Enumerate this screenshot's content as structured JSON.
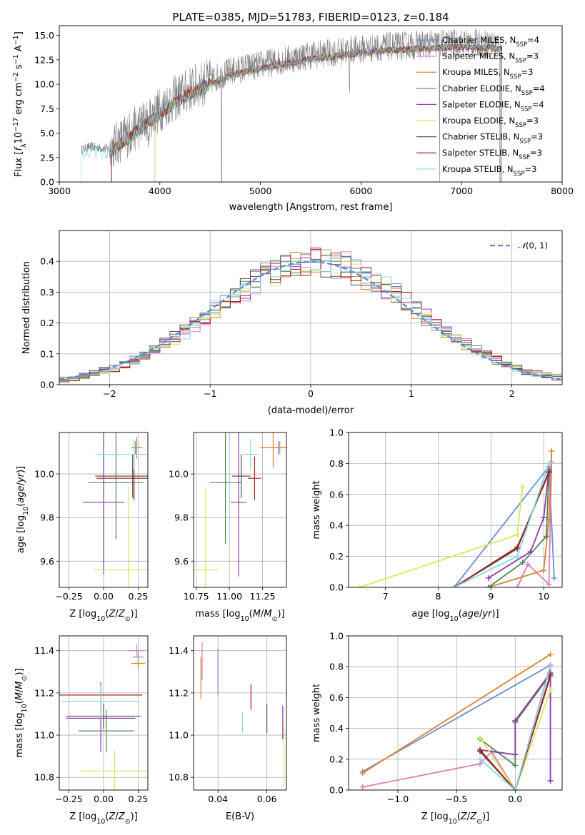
{
  "figure": {
    "title": "PLATE=0385, MJD=51783, FIBERID=0123, z=0.184"
  },
  "colors": {
    "Chabrier MILES": "#6d8fd6",
    "Salpeter MILES": "#e07ab8",
    "Kroupa MILES": "#d9822b",
    "Chabrier ELODIE": "#4f8a5a",
    "Salpeter ELODIE": "#8e3aa8",
    "Kroupa ELODIE": "#d5e85a",
    "Chabrier STELIB": "#555555",
    "Salpeter STELIB": "#a31f1f",
    "Kroupa STELIB": "#86d8e0",
    "data": "#808080",
    "normal_curve": "#5b8ad8"
  },
  "legend_models": [
    {
      "name": "Chabrier MILES",
      "nssp": "4"
    },
    {
      "name": "Salpeter MILES",
      "nssp": "3"
    },
    {
      "name": "Kroupa MILES",
      "nssp": "3"
    },
    {
      "name": "Chabrier ELODIE",
      "nssp": "4"
    },
    {
      "name": "Salpeter ELODIE",
      "nssp": "4"
    },
    {
      "name": "Kroupa ELODIE",
      "nssp": "3"
    },
    {
      "name": "Chabrier STELIB",
      "nssp": "3"
    },
    {
      "name": "Salpeter STELIB",
      "nssp": "3"
    },
    {
      "name": "Kroupa STELIB",
      "nssp": "3"
    }
  ],
  "chart_data": [
    {
      "id": "spectrum",
      "type": "line",
      "xlabel": "wavelength [Angstrom, rest frame]",
      "ylabel": "Flux [f_λ 10^-17 erg cm^-2 s^-1 A^-1]",
      "xlim": [
        3000,
        8000
      ],
      "ylim": [
        0,
        16
      ],
      "xticks": [
        3000,
        4000,
        5000,
        6000,
        7000,
        8000
      ],
      "yticks": [
        0.0,
        2.5,
        5.0,
        7.5,
        10.0,
        12.5,
        15.0
      ],
      "grid": false,
      "legend": "top-right",
      "observed_flux_envelope": {
        "x": [
          3220,
          3300,
          3500,
          3700,
          3900,
          4100,
          4300,
          4500,
          4700,
          4900,
          5100,
          5300,
          5500,
          5700,
          5900,
          6100,
          6300,
          6500,
          6700,
          6900,
          7100,
          7300,
          7400
        ],
        "y": [
          3.3,
          3.6,
          3.4,
          5.0,
          6.6,
          8.2,
          9.5,
          10.4,
          11.3,
          11.8,
          12.2,
          12.6,
          13.0,
          13.2,
          13.5,
          13.7,
          13.9,
          14.0,
          14.1,
          14.2,
          14.2,
          14.1,
          14.0
        ]
      },
      "model_start_wavelengths": {
        "Kroupa STELIB": 3220,
        "Salpeter MILES": 3520,
        "Salpeter STELIB": 3520,
        "Kroupa ELODIE": 3950,
        "Salpeter ELODIE": 3950
      }
    },
    {
      "id": "residuals",
      "type": "bar",
      "xlabel": "(data-model)/error",
      "ylabel": "Normed distribution",
      "xlim": [
        -2.5,
        2.5
      ],
      "ylim": [
        0,
        0.5
      ],
      "xticks": [
        -2,
        -1,
        0,
        1,
        2
      ],
      "yticks": [
        0.0,
        0.1,
        0.2,
        0.3,
        0.4
      ],
      "grid": true,
      "legend": "top-right",
      "legend_entry": "N(0,1)",
      "bin_width": 0.1,
      "normal_curve": {
        "mean": 0,
        "sigma": 1
      }
    },
    {
      "id": "age_vs_Z",
      "type": "scatter",
      "xlabel": "Z [log10(Z/Z⊙)]",
      "ylabel": "age [log10(age/yr)]",
      "xlim": [
        -0.32,
        0.32
      ],
      "ylim": [
        9.48,
        10.19
      ],
      "xticks": [
        -0.25,
        0.0,
        0.25
      ],
      "yticks": [
        9.6,
        9.8,
        10.0
      ],
      "grid": true,
      "points": [
        {
          "model": "Chabrier MILES",
          "x": 0.23,
          "xerr": 0.02,
          "y": 10.12,
          "yerr": 0.03
        },
        {
          "model": "Salpeter MILES",
          "x": 0.24,
          "xerr": 0.02,
          "y": 10.12,
          "yerr": 0.03
        },
        {
          "model": "Kroupa MILES",
          "x": 0.24,
          "xerr": 0.04,
          "y": 10.12,
          "yerr": 0.05
        },
        {
          "model": "Chabrier ELODIE",
          "x": 0.09,
          "xerr": 0.2,
          "y": 9.96,
          "yerr": 0.26
        },
        {
          "model": "Salpeter ELODIE",
          "x": 0.0,
          "xerr": 0.15,
          "y": 9.87,
          "yerr": 0.33
        },
        {
          "model": "Kroupa ELODIE",
          "x": 0.18,
          "xerr": 0.25,
          "y": 9.56,
          "yerr": 0.38
        },
        {
          "model": "Chabrier STELIB",
          "x": 0.21,
          "xerr": 0.27,
          "y": 9.99,
          "yerr": 0.1
        },
        {
          "model": "Salpeter STELIB",
          "x": 0.22,
          "xerr": 0.27,
          "y": 9.98,
          "yerr": 0.1
        },
        {
          "model": "Kroupa STELIB",
          "x": 0.22,
          "xerr": 0.28,
          "y": 10.09,
          "yerr": 0.07
        }
      ]
    },
    {
      "id": "age_vs_mass",
      "type": "scatter",
      "xlabel": "mass [log10(M/M⊙)]",
      "ylabel": "",
      "xlim": [
        10.73,
        11.43
      ],
      "ylim": [
        9.48,
        10.19
      ],
      "xticks": [
        10.75,
        11.0,
        11.25
      ],
      "yticks": [
        9.6,
        9.8,
        10.0
      ],
      "grid": true,
      "points": [
        {
          "model": "Chabrier MILES",
          "x": 11.37,
          "xerr": 0.03,
          "y": 10.12,
          "yerr": 0.03
        },
        {
          "model": "Salpeter MILES",
          "x": 11.38,
          "xerr": 0.03,
          "y": 10.12,
          "yerr": 0.03
        },
        {
          "model": "Kroupa MILES",
          "x": 11.33,
          "xerr": 0.1,
          "y": 10.12,
          "yerr": 0.09
        },
        {
          "model": "Chabrier ELODIE",
          "x": 10.97,
          "xerr": 0.12,
          "y": 9.96,
          "yerr": 0.28
        },
        {
          "model": "Salpeter ELODIE",
          "x": 11.07,
          "xerr": 0.06,
          "y": 9.87,
          "yerr": 0.34
        },
        {
          "model": "Kroupa ELODIE",
          "x": 10.82,
          "xerr": 0.1,
          "y": 9.56,
          "yerr": 0.38
        },
        {
          "model": "Chabrier STELIB",
          "x": 11.09,
          "xerr": 0.07,
          "y": 9.99,
          "yerr": 0.1
        },
        {
          "model": "Salpeter STELIB",
          "x": 11.19,
          "xerr": 0.05,
          "y": 9.98,
          "yerr": 0.1
        },
        {
          "model": "Kroupa STELIB",
          "x": 11.16,
          "xerr": 0.06,
          "y": 10.09,
          "yerr": 0.07
        }
      ]
    },
    {
      "id": "massweight_vs_age",
      "type": "line",
      "xlabel": "age [log10(age/yr)]",
      "ylabel": "mass weight",
      "xlim": [
        6.3,
        10.35
      ],
      "ylim": [
        0,
        1
      ],
      "xticks": [
        7,
        8,
        9,
        10
      ],
      "yticks": [
        0.0,
        0.2,
        0.4,
        0.6,
        0.8,
        1.0
      ],
      "grid": true,
      "series": [
        {
          "model": "Chabrier MILES",
          "x": [
            8.3,
            10.1,
            10.2
          ],
          "y": [
            0.0,
            0.78,
            0.06
          ]
        },
        {
          "model": "Salpeter MILES",
          "x": [
            9.5,
            9.7,
            10.1,
            10.15
          ],
          "y": [
            0.0,
            0.15,
            0.02,
            0.81
          ]
        },
        {
          "model": "Kroupa MILES",
          "x": [
            8.95,
            10.0,
            10.1,
            10.15
          ],
          "y": [
            0.0,
            0.11,
            0.44,
            0.88
          ]
        },
        {
          "model": "Chabrier ELODIE",
          "x": [
            8.95,
            9.6,
            10.05,
            10.1
          ],
          "y": [
            0.0,
            0.16,
            0.33,
            0.75
          ]
        },
        {
          "model": "Salpeter ELODIE",
          "x": [
            8.95,
            9.75,
            10.0,
            10.1
          ],
          "y": [
            0.06,
            0.23,
            0.45,
            0.76
          ]
        },
        {
          "model": "Kroupa ELODIE",
          "x": [
            6.5,
            9.5,
            9.6
          ],
          "y": [
            0.0,
            0.34,
            0.65
          ]
        },
        {
          "model": "Chabrier STELIB",
          "x": [
            8.3,
            9.5,
            10.1
          ],
          "y": [
            0.0,
            0.25,
            0.75
          ]
        },
        {
          "model": "Salpeter STELIB",
          "x": [
            8.3,
            9.5,
            10.1
          ],
          "y": [
            0.0,
            0.26,
            0.74
          ]
        },
        {
          "model": "Kroupa STELIB",
          "x": [
            8.3,
            9.5,
            10.1
          ],
          "y": [
            0.0,
            0.2,
            0.8
          ]
        }
      ]
    },
    {
      "id": "mass_vs_Z",
      "type": "scatter",
      "xlabel": "Z [log10(Z/Z⊙)]",
      "ylabel": "mass [log10(M/M⊙)]",
      "xlim": [
        -0.32,
        0.32
      ],
      "ylim": [
        10.74,
        11.47
      ],
      "xticks": [
        -0.25,
        0.0,
        0.25
      ],
      "yticks": [
        10.8,
        11.0,
        11.2,
        11.4
      ],
      "grid": true,
      "points": [
        {
          "model": "Chabrier MILES",
          "x": 0.25,
          "xerr": 0.04,
          "y": 11.37,
          "yerr": 0.03
        },
        {
          "model": "Salpeter MILES",
          "x": 0.24,
          "xerr": 0.06,
          "y": 11.4,
          "yerr": 0.03
        },
        {
          "model": "Kroupa MILES",
          "x": 0.25,
          "xerr": 0.05,
          "y": 11.34,
          "yerr": 0.03
        },
        {
          "model": "Chabrier ELODIE",
          "x": 0.02,
          "xerr": 0.2,
          "y": 11.02,
          "yerr": 0.1
        },
        {
          "model": "Salpeter ELODIE",
          "x": -0.02,
          "xerr": 0.25,
          "y": 11.08,
          "yerr": 0.16
        },
        {
          "model": "Kroupa ELODIE",
          "x": 0.08,
          "xerr": 0.25,
          "y": 10.83,
          "yerr": 0.1
        },
        {
          "model": "Chabrier STELIB",
          "x": 0.0,
          "xerr": 0.27,
          "y": 11.09,
          "yerr": 0.06
        },
        {
          "model": "Salpeter STELIB",
          "x": -0.02,
          "xerr": 0.3,
          "y": 11.19,
          "yerr": 0.06
        },
        {
          "model": "Kroupa STELIB",
          "x": -0.02,
          "xerr": 0.28,
          "y": 11.16,
          "yerr": 0.08
        }
      ]
    },
    {
      "id": "mass_vs_EBV",
      "type": "scatter",
      "xlabel": "E(B-V)",
      "ylabel": "",
      "xlim": [
        0.03,
        0.068
      ],
      "ylim": [
        10.74,
        11.47
      ],
      "xticks": [
        0.04,
        0.06
      ],
      "yticks": [
        10.8,
        11.0,
        11.2,
        11.4
      ],
      "grid": true,
      "points": [
        {
          "model": "Kroupa MILES",
          "x": 0.033,
          "y": 11.27,
          "yerr": 0.1
        },
        {
          "model": "Salpeter MILES",
          "x": 0.0335,
          "y": 11.35,
          "yerr": 0.09
        },
        {
          "model": "Chabrier MILES",
          "x": 0.04,
          "y": 11.3,
          "yerr": 0.11
        },
        {
          "model": "Kroupa STELIB",
          "x": 0.05,
          "y": 11.06,
          "yerr": 0.05
        },
        {
          "model": "Salpeter STELIB",
          "x": 0.0535,
          "y": 11.18,
          "yerr": 0.06
        },
        {
          "model": "Chabrier STELIB",
          "x": 0.06,
          "y": 11.08,
          "yerr": 0.07
        },
        {
          "model": "Salpeter ELODIE",
          "x": 0.0665,
          "y": 11.06,
          "yerr": 0.08
        },
        {
          "model": "Kroupa ELODIE",
          "x": 0.067,
          "y": 10.9,
          "yerr": 0.14
        }
      ]
    },
    {
      "id": "massweight_vs_Z",
      "type": "line",
      "xlabel": "Z [log10(Z/Z⊙)]",
      "ylabel": "mass weight",
      "xlim": [
        -1.42,
        0.4
      ],
      "ylim": [
        0,
        1
      ],
      "xticks": [
        -1.0,
        -0.5,
        0.0
      ],
      "yticks": [
        0.0,
        0.2,
        0.4,
        0.6,
        0.8,
        1.0
      ],
      "grid": true,
      "series": [
        {
          "model": "Chabrier MILES",
          "x": [
            -1.3,
            0.3,
            0.3
          ],
          "y": [
            0.12,
            0.81,
            0.06
          ]
        },
        {
          "model": "Kroupa MILES",
          "x": [
            -1.3,
            0.3
          ],
          "y": [
            0.11,
            0.88
          ]
        },
        {
          "model": "Salpeter MILES",
          "x": [
            -1.3,
            -0.3,
            -0.2,
            0.0,
            0.3
          ],
          "y": [
            0.02,
            0.17,
            0.25,
            0.0,
            0.81
          ]
        },
        {
          "model": "Chabrier ELODIE",
          "x": [
            -0.3,
            0.0,
            0.0,
            0.3
          ],
          "y": [
            0.33,
            0.16,
            0.44,
            0.75
          ]
        },
        {
          "model": "Salpeter ELODIE",
          "x": [
            -0.3,
            0.0,
            0.0,
            0.3,
            0.3
          ],
          "y": [
            0.26,
            0.23,
            0.45,
            0.76,
            0.06
          ]
        },
        {
          "model": "Kroupa ELODIE",
          "x": [
            -0.3,
            0.0,
            0.3
          ],
          "y": [
            0.34,
            0.0,
            0.65
          ]
        },
        {
          "model": "Chabrier STELIB",
          "x": [
            -0.3,
            0.0,
            0.3
          ],
          "y": [
            0.25,
            0.0,
            0.75
          ]
        },
        {
          "model": "Salpeter STELIB",
          "x": [
            -0.3,
            0.0,
            0.3
          ],
          "y": [
            0.26,
            0.0,
            0.74
          ]
        },
        {
          "model": "Kroupa STELIB",
          "x": [
            -0.3,
            0.0,
            0.3
          ],
          "y": [
            0.2,
            0.0,
            0.8
          ]
        }
      ]
    }
  ]
}
